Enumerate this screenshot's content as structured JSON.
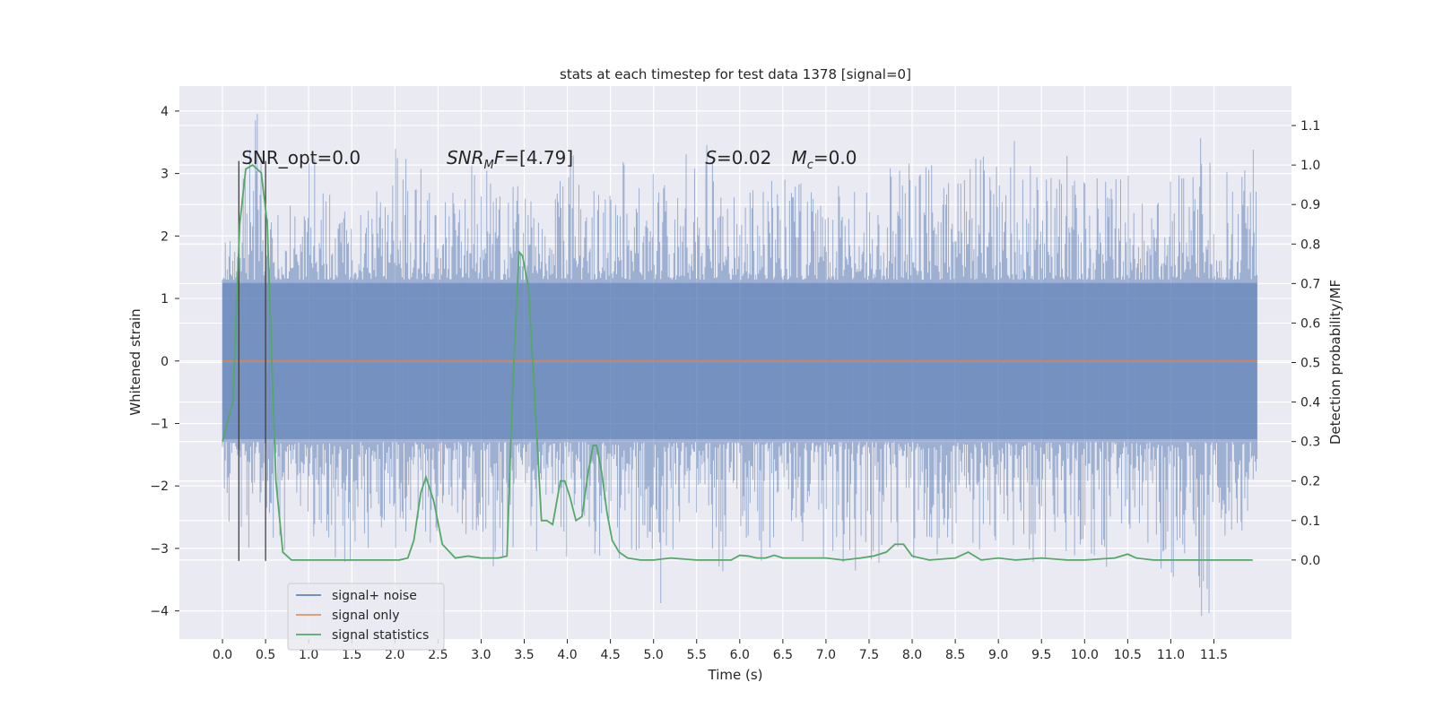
{
  "chart_data": {
    "type": "line",
    "title": "stats at each timestep for test data 1378 [signal=0]",
    "xlabel": "Time (s)",
    "ylabel": "Whitened strain",
    "y2label": "Detection probability/MF",
    "xlim": [
      -0.5,
      12.4
    ],
    "ylim": [
      -4.45,
      4.4
    ],
    "y2lim": [
      -0.2,
      1.2
    ],
    "x_ticks": [
      0.0,
      0.5,
      1.0,
      1.5,
      2.0,
      2.5,
      3.0,
      3.5,
      4.0,
      4.5,
      5.0,
      5.5,
      6.0,
      6.5,
      7.0,
      7.5,
      8.0,
      8.5,
      9.0,
      9.5,
      10.0,
      10.5,
      11.0,
      11.5
    ],
    "x_tick_labels": [
      "0.0",
      "0.5",
      "1.0",
      "1.5",
      "2.0",
      "2.5",
      "3.0",
      "3.5",
      "4.0",
      "4.5",
      "5.0",
      "5.5",
      "6.0",
      "6.5",
      "7.0",
      "7.5",
      "8.0",
      "8.5",
      "9.0",
      "9.5",
      "10.0",
      "10.5",
      "11.0",
      "11.5"
    ],
    "y_ticks": [
      -4,
      -3,
      -2,
      -1,
      0,
      1,
      2,
      3,
      4
    ],
    "y_tick_labels": [
      "−4",
      "−3",
      "−2",
      "−1",
      "0",
      "1",
      "2",
      "3",
      "4"
    ],
    "y2_ticks": [
      0.0,
      0.1,
      0.2,
      0.3,
      0.4,
      0.5,
      0.6,
      0.7,
      0.8,
      0.9,
      1.0,
      1.1
    ],
    "y2_tick_labels": [
      "0.0",
      "0.1",
      "0.2",
      "0.3",
      "0.4",
      "0.5",
      "0.6",
      "0.7",
      "0.8",
      "0.9",
      "1.0",
      "1.1"
    ],
    "grid": true,
    "legend_position": "lower-left",
    "legend": [
      {
        "label": "signal+ noise",
        "color": "#4c72b0"
      },
      {
        "label": "signal only",
        "color": "#dd8452"
      },
      {
        "label": "signal statistics",
        "color": "#55a868"
      }
    ],
    "noise_series": {
      "name": "signal+ noise",
      "color": "#4c72b0",
      "x_range": [
        0.0,
        12.0
      ],
      "envelope_max": [
        2.2,
        4.0,
        2.7,
        2.5,
        3.3,
        2.7,
        2.6,
        3.0,
        3.4,
        3.2,
        2.8,
        2.9,
        3.3,
        2.9,
        3.0,
        2.8,
        3.3,
        3.2,
        3.0,
        3.2,
        3.0,
        2.9,
        3.5,
        3.8,
        2.9,
        3.2,
        3.0,
        3.0,
        3.0,
        2.8,
        3.1,
        3.0,
        3.3,
        3.5,
        3.2,
        3.0,
        3.3,
        3.3,
        3.7,
        3.2,
        3.4,
        3.1,
        3.2,
        3.3,
        3.0,
        3.0,
        3.0,
        3.9,
        3.3,
        3.4
      ],
      "envelope_min": [
        -2.8,
        -3.1,
        -3.2,
        -3.5,
        -2.9,
        -3.4,
        -3.3,
        -3.0,
        -3.0,
        -3.0,
        -3.0,
        -2.8,
        -2.9,
        -3.3,
        -3.1,
        -3.5,
        -3.2,
        -3.0,
        -3.2,
        -3.2,
        -3.1,
        -3.9,
        -3.0,
        -3.2,
        -3.5,
        -3.0,
        -3.2,
        -3.0,
        -3.0,
        -3.2,
        -3.4,
        -3.3,
        -3.0,
        -3.2,
        -3.1,
        -3.0,
        -3.1,
        -3.1,
        -3.0,
        -3.6,
        -3.1,
        -3.2,
        -3.3,
        -3.0,
        -3.1,
        -3.6,
        -3.2,
        -4.1,
        -3.1,
        -2.9
      ],
      "band_abs": 1.25
    },
    "signal_only": {
      "name": "signal only",
      "color": "#dd8452",
      "x": [
        0.0,
        12.0
      ],
      "y": [
        0.0,
        0.0
      ]
    },
    "statistics_series": {
      "name": "signal statistics",
      "color": "#55a868",
      "x": [
        0.0,
        0.12,
        0.2,
        0.27,
        0.35,
        0.45,
        0.52,
        0.58,
        0.62,
        0.7,
        0.8,
        1.5,
        2.05,
        2.15,
        2.22,
        2.3,
        2.36,
        2.45,
        2.55,
        2.7,
        2.85,
        3.0,
        3.2,
        3.3,
        3.36,
        3.44,
        3.48,
        3.55,
        3.62,
        3.7,
        3.76,
        3.83,
        3.92,
        3.97,
        4.03,
        4.1,
        4.17,
        4.24,
        4.3,
        4.34,
        4.4,
        4.46,
        4.52,
        4.6,
        4.7,
        4.85,
        5.0,
        5.2,
        5.5,
        5.9,
        6.0,
        6.1,
        6.2,
        6.3,
        6.4,
        6.5,
        6.8,
        7.0,
        7.2,
        7.4,
        7.55,
        7.7,
        7.8,
        7.9,
        8.0,
        8.2,
        8.5,
        8.65,
        8.8,
        9.0,
        9.2,
        9.5,
        9.8,
        10.0,
        10.35,
        10.5,
        10.6,
        10.8,
        11.0,
        11.2,
        11.5,
        11.8,
        11.95
      ],
      "y": [
        0.3,
        0.4,
        0.85,
        0.99,
        1.0,
        0.98,
        0.85,
        0.45,
        0.2,
        0.02,
        0.0,
        0.0,
        0.0,
        0.005,
        0.05,
        0.17,
        0.21,
        0.15,
        0.04,
        0.005,
        0.01,
        0.005,
        0.005,
        0.01,
        0.4,
        0.78,
        0.77,
        0.69,
        0.42,
        0.1,
        0.1,
        0.09,
        0.2,
        0.2,
        0.16,
        0.1,
        0.11,
        0.22,
        0.29,
        0.29,
        0.22,
        0.12,
        0.05,
        0.02,
        0.005,
        0.0,
        0.0,
        0.005,
        0.0,
        0.0,
        0.012,
        0.01,
        0.005,
        0.005,
        0.012,
        0.005,
        0.005,
        0.005,
        0.0,
        0.005,
        0.01,
        0.02,
        0.04,
        0.04,
        0.01,
        0.0,
        0.005,
        0.02,
        0.0,
        0.005,
        0.0,
        0.005,
        0.0,
        0.0,
        0.005,
        0.015,
        0.005,
        0.0,
        0.0,
        0.0,
        0.0,
        0.0,
        0.0
      ]
    },
    "vertical_lines": {
      "x": [
        0.19,
        0.5
      ],
      "y_range": [
        -3.2,
        3.2
      ],
      "color": "#404040"
    },
    "annotations": [
      {
        "x": 0.22,
        "y": 3.15,
        "text": "SNR_opt=0.0"
      },
      {
        "x": 2.6,
        "y": 3.15,
        "text": "SNR",
        "sub": "M",
        "rest": "F=[4.79]"
      },
      {
        "x": 5.6,
        "y": 3.15,
        "text": "S",
        "rest": "=0.02"
      },
      {
        "x": 6.6,
        "y": 3.15,
        "text": "M",
        "sub": "c",
        "rest": "=0.0"
      }
    ]
  }
}
